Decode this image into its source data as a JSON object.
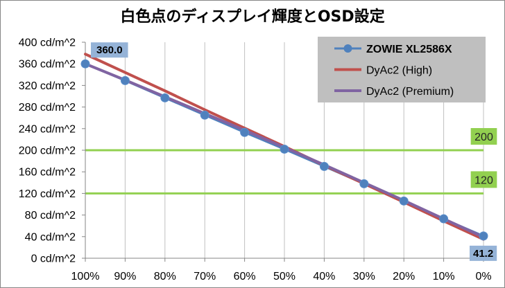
{
  "chart_data": {
    "type": "line",
    "title": "白色点のディスプレイ輝度とOSD設定",
    "categories": [
      "100%",
      "90%",
      "80%",
      "70%",
      "60%",
      "50%",
      "40%",
      "30%",
      "20%",
      "10%",
      "0%"
    ],
    "ylim": [
      0,
      400
    ],
    "y_ticks": [
      0,
      40,
      80,
      120,
      160,
      200,
      240,
      280,
      320,
      360,
      400
    ],
    "y_tick_labels": [
      "0 cd/m^2",
      "40 cd/m^2",
      "80 cd/m^2",
      "120 cd/m^2",
      "160 cd/m^2",
      "200 cd/m^2",
      "240 cd/m^2",
      "280 cd/m^2",
      "320 cd/m^2",
      "360 cd/m^2",
      "400 cd/m^2"
    ],
    "grid": {
      "vertical": true,
      "horizontal": false
    },
    "legend": "top-right",
    "legend_fill": "#bfbfbf",
    "series": [
      {
        "name": "ZOWIE XL2586X",
        "color": "#4f81bd",
        "markers": true,
        "values": [
          360.0,
          329,
          297,
          265,
          233,
          202,
          170,
          138,
          106,
          73,
          41.2
        ]
      },
      {
        "name": "DyAc2 (High)",
        "color": "#c0504d",
        "markers": false,
        "values": [
          378,
          344,
          310,
          275,
          241,
          207,
          172,
          138,
          104,
          69,
          35
        ]
      },
      {
        "name": "DyAc2 (Premium)",
        "color": "#8064a2",
        "markers": false,
        "values": [
          360,
          330,
          299,
          268,
          237,
          205,
          173,
          140,
          107,
          73,
          39
        ]
      }
    ],
    "reference_lines": [
      {
        "value": 200,
        "label": "200",
        "color": "#92d050"
      },
      {
        "value": 120,
        "label": "120",
        "color": "#92d050"
      }
    ],
    "data_label_fill": "#95b3d7",
    "data_labels": [
      {
        "series": 0,
        "index": 0,
        "text": "360.0"
      },
      {
        "series": 0,
        "index": 10,
        "text": "41.2"
      }
    ]
  }
}
